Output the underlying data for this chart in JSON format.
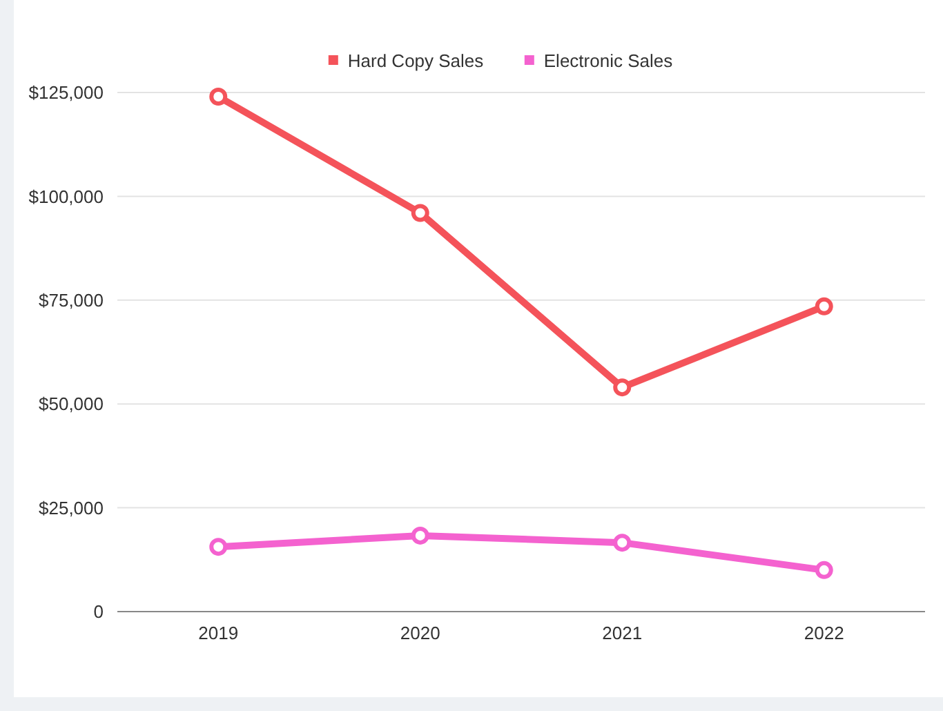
{
  "chart_data": {
    "type": "line",
    "categories": [
      "2019",
      "2020",
      "2021",
      "2022"
    ],
    "series": [
      {
        "name": "Hard Copy Sales",
        "color": "#f4535a",
        "values": [
          124000,
          96000,
          54000,
          73500
        ]
      },
      {
        "name": "Electronic Sales",
        "color": "#f462cf",
        "values": [
          15600,
          18300,
          16600,
          10000
        ]
      }
    ],
    "ylim": [
      0,
      125000
    ],
    "yticks": [
      {
        "value": 0,
        "label": "0"
      },
      {
        "value": 25000,
        "label": "$25,000"
      },
      {
        "value": 50000,
        "label": "$50,000"
      },
      {
        "value": 75000,
        "label": "$75,000"
      },
      {
        "value": 100000,
        "label": "$100,000"
      },
      {
        "value": 125000,
        "label": "$125,000"
      }
    ],
    "grid": "y",
    "legend": "top",
    "marker": "circle",
    "line_style": "solid"
  }
}
